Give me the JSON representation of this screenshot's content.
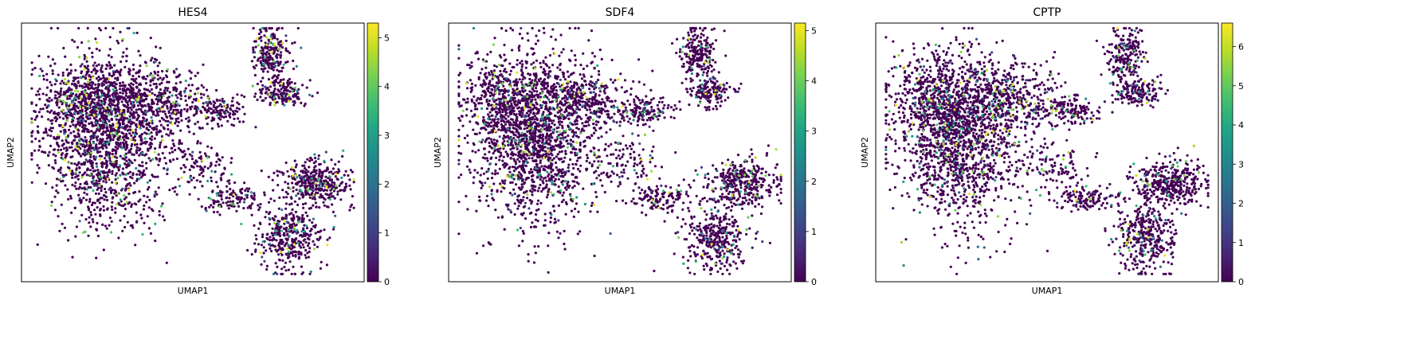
{
  "chart_data": [
    {
      "type": "scatter",
      "title": "HES4",
      "xlabel": "UMAP1",
      "ylabel": "UMAP2",
      "colormap": "viridis",
      "color_range": [
        0,
        5.3
      ],
      "colorbar_ticks": [
        0,
        1,
        2,
        3,
        4,
        5
      ],
      "x_ticks_shown": false,
      "y_ticks_shown": false,
      "grid": false,
      "legend": "colorbar-right"
    },
    {
      "type": "scatter",
      "title": "SDF4",
      "xlabel": "UMAP1",
      "ylabel": "UMAP2",
      "colormap": "viridis",
      "color_range": [
        0,
        5.15
      ],
      "colorbar_ticks": [
        0,
        1,
        2,
        3,
        4,
        5
      ],
      "x_ticks_shown": false,
      "y_ticks_shown": false,
      "grid": false,
      "legend": "colorbar-right"
    },
    {
      "type": "scatter",
      "title": "CPTP",
      "xlabel": "UMAP1",
      "ylabel": "UMAP2",
      "colormap": "viridis",
      "color_range": [
        0,
        6.6
      ],
      "colorbar_ticks": [
        0,
        1,
        2,
        3,
        4,
        5,
        6
      ],
      "x_ticks_shown": false,
      "y_ticks_shown": false,
      "grid": false,
      "legend": "colorbar-right"
    }
  ]
}
